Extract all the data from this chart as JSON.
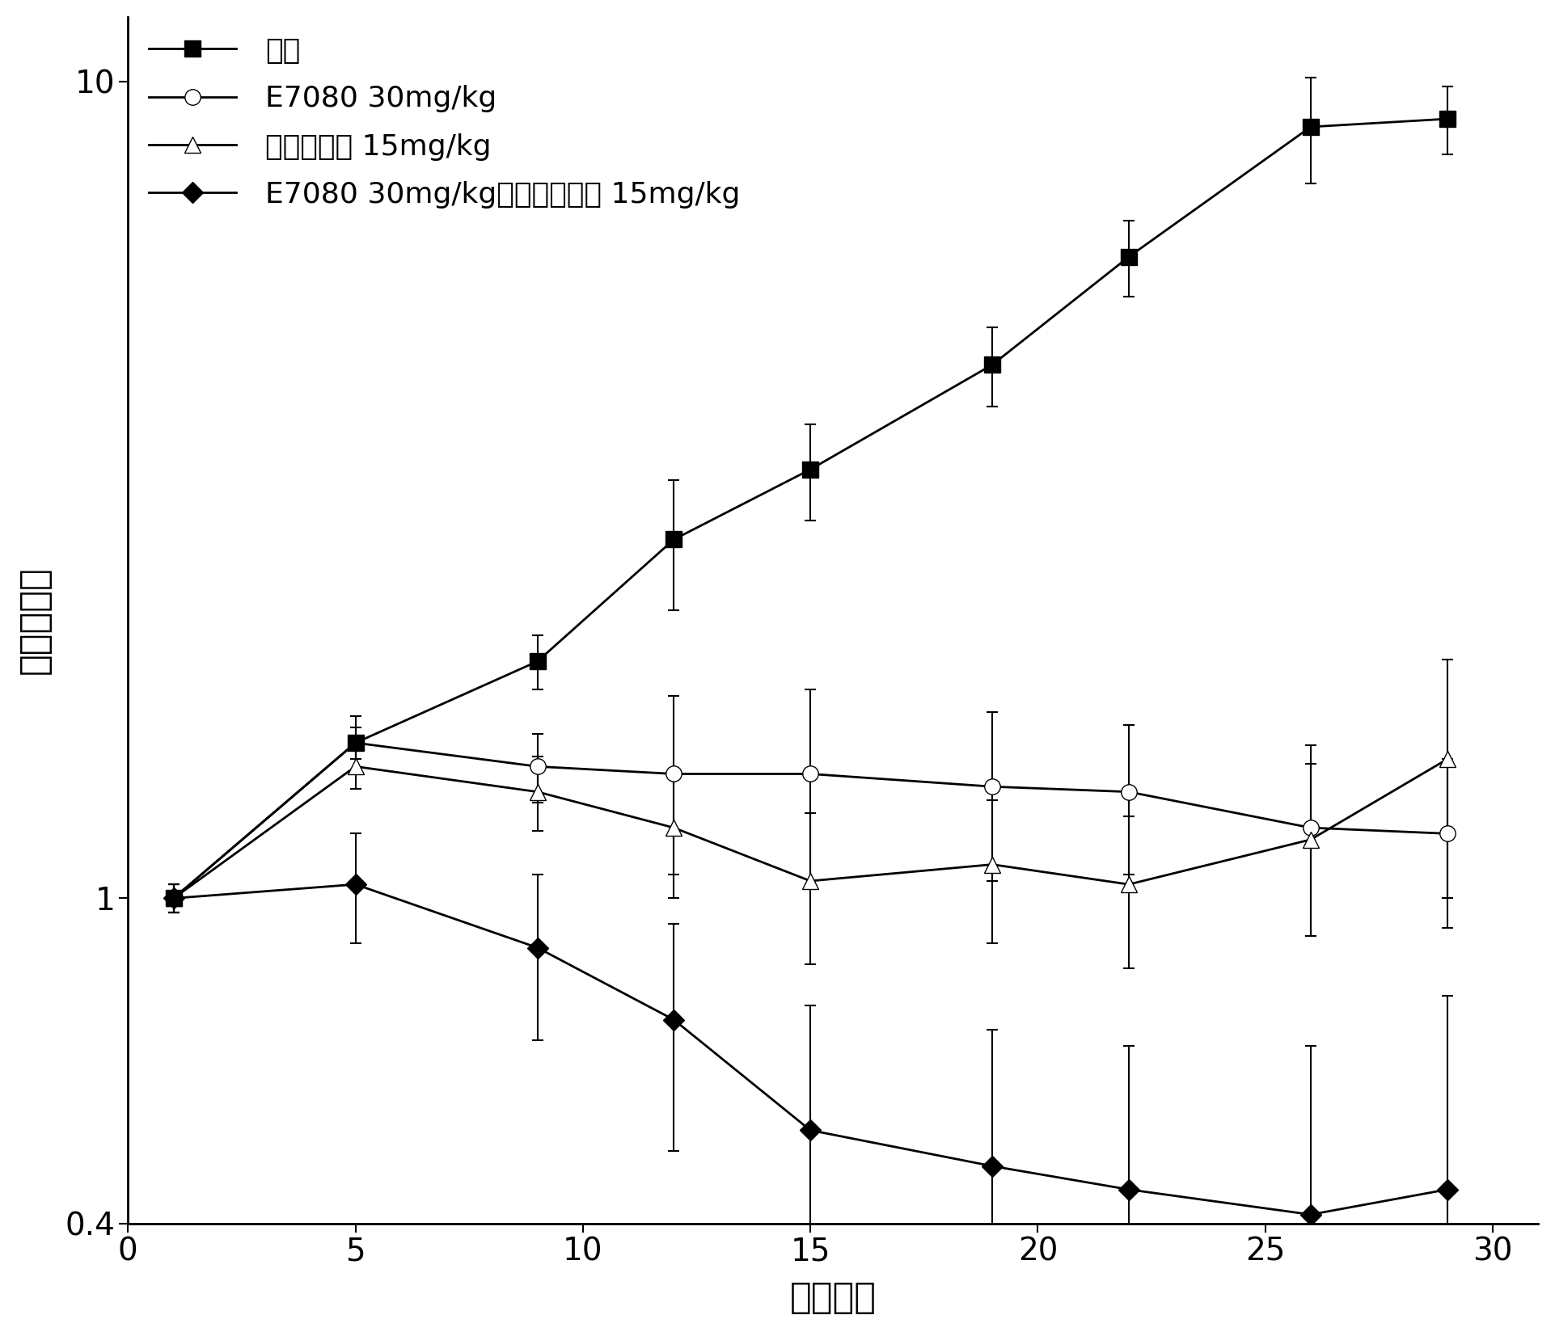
{
  "x": [
    1,
    5,
    9,
    12,
    15,
    19,
    22,
    26,
    29
  ],
  "control_y": [
    1.0,
    1.55,
    1.95,
    2.75,
    3.35,
    4.5,
    6.1,
    8.8,
    9.0
  ],
  "control_yerr": [
    0.04,
    0.07,
    0.15,
    0.5,
    0.45,
    0.5,
    0.65,
    1.3,
    0.85
  ],
  "e7080_y": [
    1.0,
    1.55,
    1.45,
    1.42,
    1.42,
    1.37,
    1.35,
    1.22,
    1.2
  ],
  "e7080_yerr": [
    0.04,
    0.12,
    0.14,
    0.35,
    0.38,
    0.32,
    0.28,
    0.32,
    0.28
  ],
  "docetaxel_y": [
    1.0,
    1.45,
    1.35,
    1.22,
    1.05,
    1.1,
    1.04,
    1.18,
    1.48
  ],
  "docetaxel_yerr": [
    0.04,
    0.09,
    0.14,
    0.22,
    0.22,
    0.22,
    0.22,
    0.28,
    0.48
  ],
  "combo_y": [
    1.0,
    1.04,
    0.87,
    0.71,
    0.52,
    0.47,
    0.44,
    0.41,
    0.44
  ],
  "combo_yerr": [
    0.04,
    0.16,
    0.2,
    0.22,
    0.22,
    0.22,
    0.22,
    0.25,
    0.32
  ],
  "label_control": "对照",
  "label_e7080": "E7080 30mg/kg",
  "label_docetaxel": "多西紫杉醇 15mg/kg",
  "label_combo": "E7080 30mg/kg＋多西紫杉醇 15mg/kg",
  "xlabel": "施用日数",
  "ylabel": "比肆癌体积",
  "ylim_bottom": 0.4,
  "ylim_top": 12,
  "xlim_left": 0,
  "xlim_right": 31,
  "xticks": [
    0,
    5,
    10,
    15,
    20,
    25,
    30
  ],
  "ytick_values": [
    0.4,
    1,
    10
  ],
  "ytick_labels": [
    "0.4",
    "1",
    "10"
  ],
  "bg_color": "#ffffff",
  "fig_width": 19.23,
  "fig_height": 16.48,
  "dpi": 100
}
